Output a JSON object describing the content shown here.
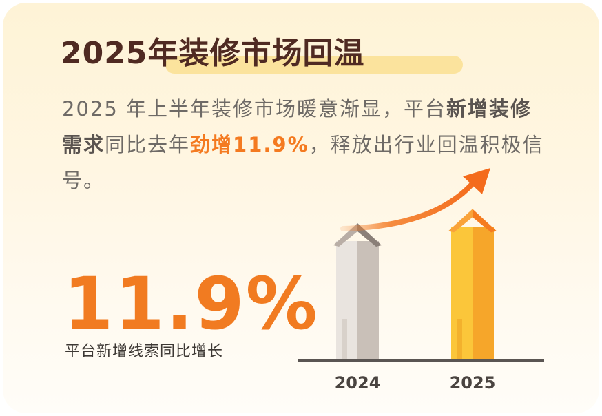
{
  "title": "2025年装修市场回温",
  "description": {
    "part1": "2025 年上半年装修市场暖意渐显，平台",
    "bold1": "新增装修需求",
    "part2": "同比去年",
    "accent": "劲增11.9%",
    "part3": "，释放出行业回温积极信号。"
  },
  "highlight": {
    "value": "11.9%",
    "caption": "平台新增线索同比增长"
  },
  "colors": {
    "accent": "#f17b21",
    "title": "#4f2a22",
    "bar_2024": "#d9d2cb",
    "bar_2025": "#f9b72e"
  },
  "chart_data": {
    "type": "bar",
    "categories": [
      "2024",
      "2025"
    ],
    "values": [
      100,
      111.9
    ],
    "title": "",
    "xlabel": "",
    "ylabel": "",
    "grid": false,
    "annotation": "rising-arrow"
  }
}
